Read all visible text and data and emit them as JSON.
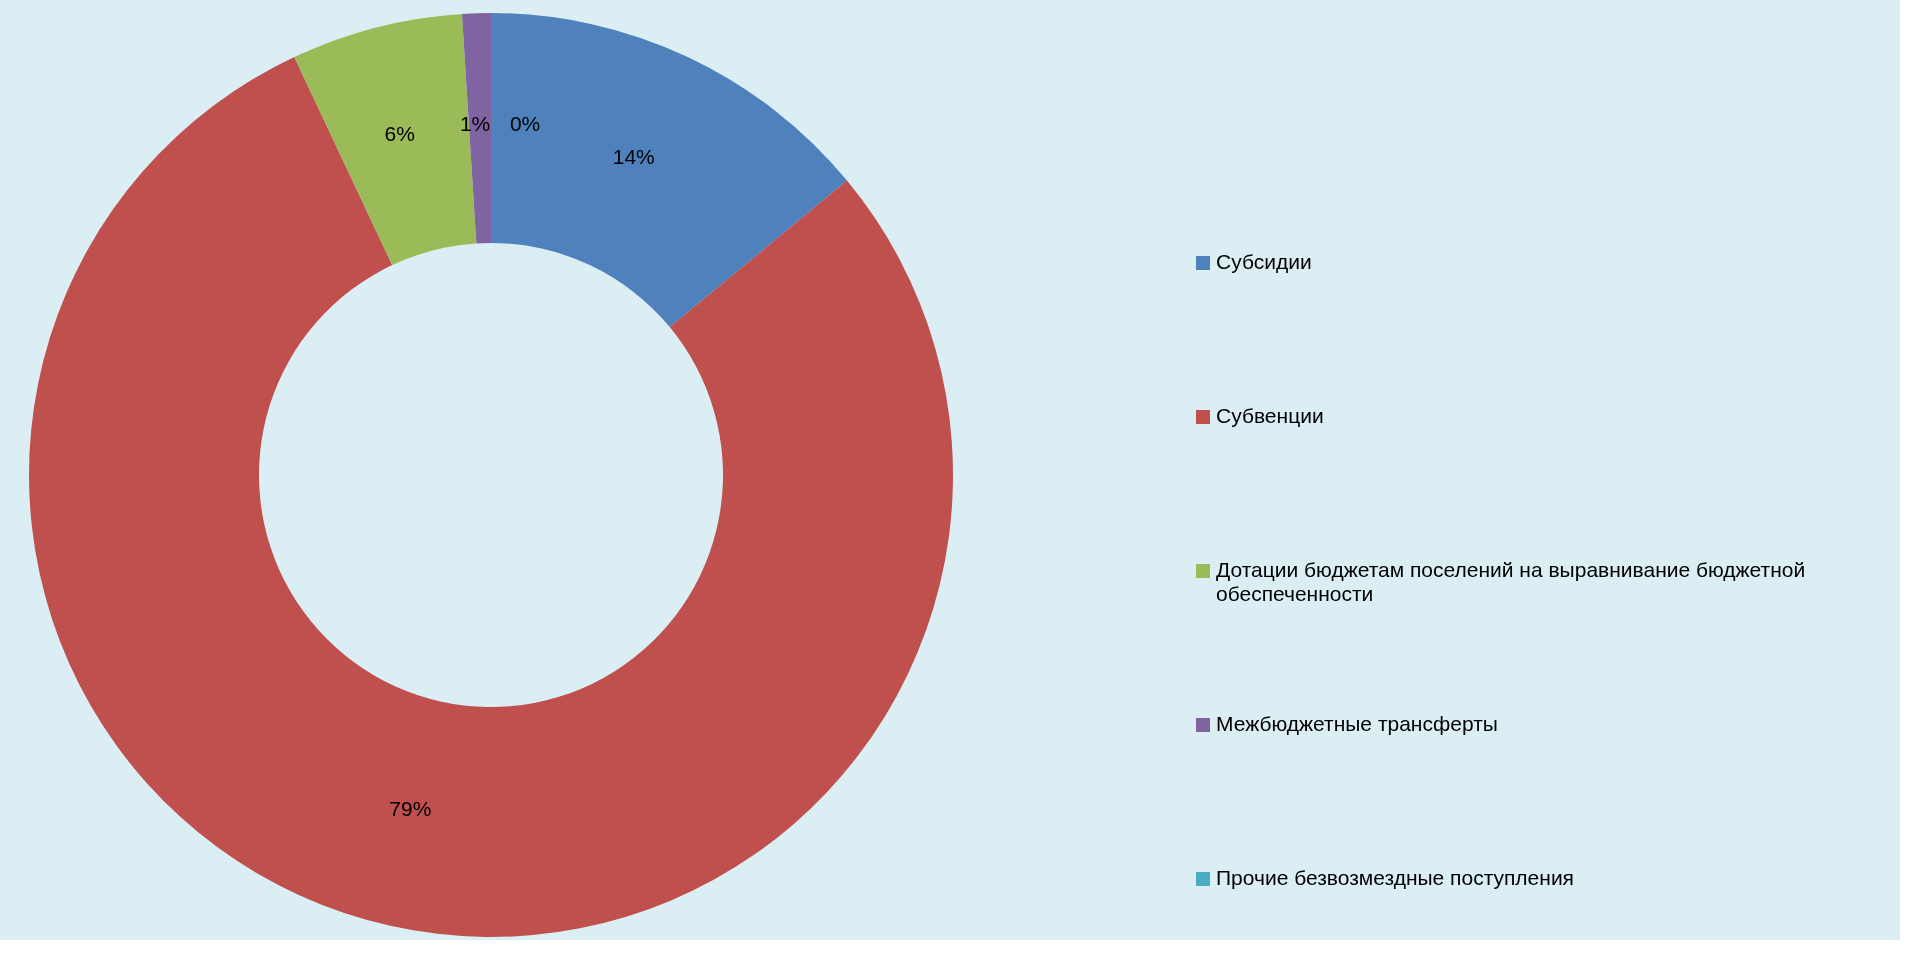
{
  "chart_data": {
    "type": "donut",
    "categories": [
      "Субсидии",
      "Субвенции",
      "Дотации бюджетам поселений на выравнивание бюджетной обеспеченности",
      "Межбюджетные трансферты",
      "Прочие безвозмездные поступления"
    ],
    "values": [
      14,
      79,
      6,
      1,
      0
    ],
    "colors": [
      "#4f81bd",
      "#c0504d",
      "#9bbb59",
      "#8064a2",
      "#4bacc6"
    ],
    "value_labels": [
      "14%",
      "79%",
      "6%",
      "1%",
      "0%"
    ],
    "legend": "right"
  }
}
